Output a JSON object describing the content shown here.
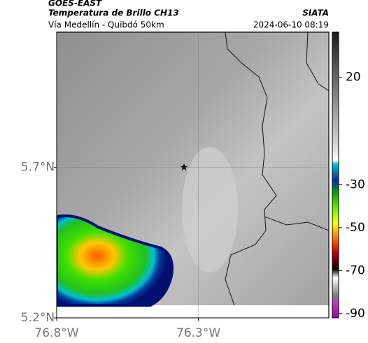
{
  "header": {
    "title": "GOES-EAST",
    "subtitle": "Temperatura de Brillo CH13",
    "source": "SIATA",
    "location": "Vía Medellín - Quibdó 50km",
    "datetime": "2024-06-10 08:19"
  },
  "map": {
    "latlim": [
      5.2,
      6.15
    ],
    "lonlim": [
      -76.8,
      -75.84
    ],
    "latticks": [
      {
        "value": 5.7,
        "label": "5.7°N"
      },
      {
        "value": 5.2,
        "label": "5.2°N"
      }
    ],
    "lonticks": [
      {
        "value": -76.8,
        "label": "76.8°W"
      },
      {
        "value": -76.3,
        "label": "76.3°W"
      }
    ],
    "grid": true
  },
  "colorbar": {
    "lim": [
      -92,
      41
    ],
    "ticks": [
      20,
      -30,
      -50,
      -70,
      -90
    ]
  }
}
